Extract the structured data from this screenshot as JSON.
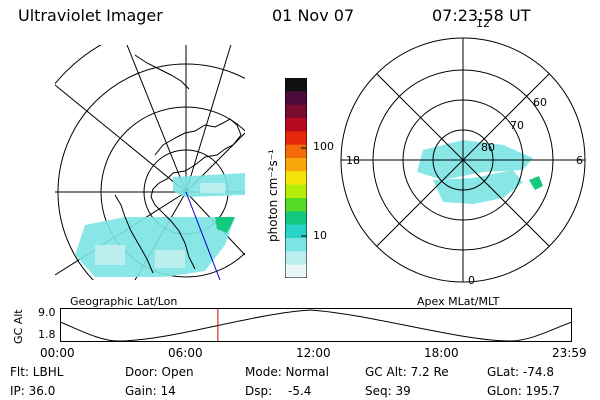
{
  "header": {
    "instrument": "Ultraviolet Imager",
    "date": "01 Nov 07",
    "time": "07:23:58 UT"
  },
  "colorbar": {
    "unit_label": "photon cm⁻²s⁻¹",
    "ticks": [
      "100",
      "10"
    ],
    "colors": [
      "#101010",
      "#4a0a3c",
      "#7a0a30",
      "#b80a1e",
      "#e8280a",
      "#f46a0a",
      "#f8a80a",
      "#f4e40a",
      "#b4ec0a",
      "#54dc24",
      "#14c880",
      "#28d4c8",
      "#7ce4e4",
      "#bceeee",
      "#e8f6f6"
    ]
  },
  "left_map": {
    "caption": "Geographic Lat/Lon"
  },
  "right_map": {
    "caption": "Apex MLat/MLT",
    "hour_labels": [
      "12",
      "18",
      "6",
      "0"
    ],
    "lat_labels": [
      "60",
      "70",
      "80"
    ]
  },
  "altitude_plot": {
    "ylabel": "GC Alt",
    "y_ticks": [
      "9.0",
      "1.8"
    ],
    "x_ticks": [
      "00:00",
      "06:00",
      "12:00",
      "18:00",
      "23:59"
    ],
    "current_marker_hours": 7.4
  },
  "status": {
    "flt": "Flt: LBHL",
    "door": "Door: Open",
    "mode": "Mode: Normal",
    "gc_alt": "GC Alt: 7.2 Re",
    "glat": "GLat: -74.8",
    "ip": "IP: 36.0",
    "gain": "Gain: 14",
    "dsp_label": "Dsp:",
    "dsp_value": "-5.4",
    "seq": "Seq: 39",
    "glon": "GLon: 195.7"
  }
}
